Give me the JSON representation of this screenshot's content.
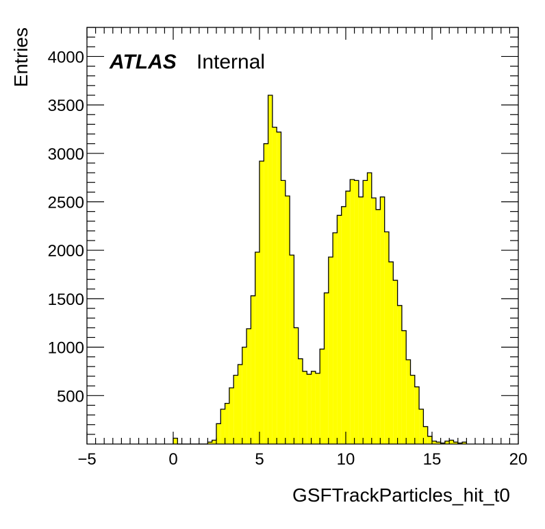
{
  "chart_data": {
    "type": "histogram",
    "xlabel": "GSFTrackParticles_hit_t0",
    "ylabel": "Entries",
    "xlim": [
      -5,
      20
    ],
    "ylim": [
      0,
      4300
    ],
    "bin_width": 0.25,
    "bin_start": 0,
    "x_major_ticks": [
      -5,
      0,
      5,
      10,
      15,
      20
    ],
    "y_major_ticks": [
      500,
      1000,
      1500,
      2000,
      2500,
      3000,
      3500,
      4000
    ],
    "x_tick_labels": [
      "−5",
      "0",
      "5",
      "10",
      "15",
      "20"
    ],
    "y_tick_labels": [
      "500",
      "1000",
      "1500",
      "2000",
      "2500",
      "3000",
      "3500",
      "4000"
    ],
    "values": [
      60,
      0,
      0,
      0,
      0,
      0,
      0,
      0,
      20,
      40,
      210,
      360,
      420,
      580,
      710,
      820,
      1000,
      1190,
      1530,
      1980,
      2920,
      3100,
      3600,
      3270,
      3220,
      2720,
      2560,
      1950,
      1200,
      880,
      750,
      720,
      750,
      730,
      980,
      1560,
      1930,
      2180,
      2360,
      2450,
      2610,
      2730,
      2720,
      2550,
      2720,
      2800,
      2540,
      2420,
      2550,
      2190,
      1880,
      1690,
      1430,
      1170,
      870,
      710,
      590,
      360,
      180,
      80,
      30,
      20,
      10,
      30,
      40,
      20,
      10,
      20
    ],
    "fill_color": "#ffff00",
    "line_color": "#000000",
    "annotation": {
      "atlas": "ATLAS",
      "status": "Internal"
    }
  }
}
